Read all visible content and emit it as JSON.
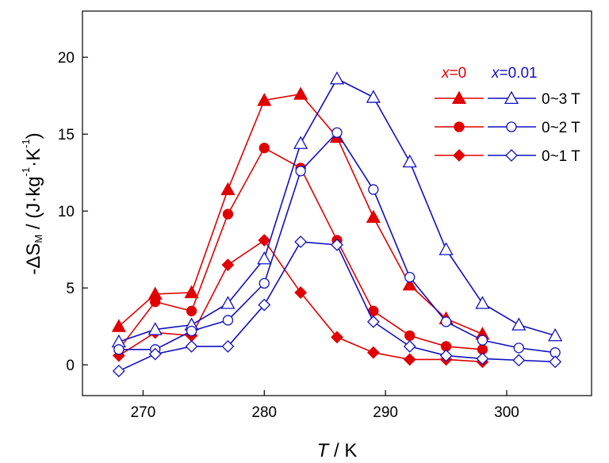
{
  "chart_data": {
    "type": "line",
    "xlabel": {
      "symbol": "T",
      "unit": " / K"
    },
    "ylabel": {
      "prefix": "-",
      "delta": "Δ",
      "symbol": "S",
      "subscript": "M",
      "unit": " / (J·kg",
      "exp1": "-1",
      "mid": "·K",
      "exp2": "-1",
      "close": ")"
    },
    "xlim": [
      265,
      307
    ],
    "ylim": [
      -2,
      23
    ],
    "xticks": [
      270,
      280,
      290,
      300
    ],
    "yticks": [
      0,
      5,
      10,
      15,
      20
    ],
    "legend": {
      "placement": "top-right",
      "group_labels": [
        {
          "var": "x",
          "eq": "=0",
          "color": "#e00000"
        },
        {
          "var": "x",
          "eq": "=0.01",
          "color": "#1010c0"
        }
      ],
      "entries": [
        "0~3 T",
        "0~2 T",
        "0~1 T"
      ]
    },
    "colors": {
      "x0": "#e00000",
      "x001": "#1010c0"
    },
    "series": [
      {
        "label": "0~3 T",
        "group": "x=0",
        "marker": "triangle",
        "filled": true,
        "x": [
          268,
          271,
          274,
          277,
          280,
          283,
          286,
          289,
          292,
          295,
          298
        ],
        "y": [
          2.5,
          4.6,
          4.7,
          11.4,
          17.2,
          17.6,
          14.8,
          9.6,
          5.2,
          3.0,
          2.0
        ]
      },
      {
        "label": "0~2 T",
        "group": "x=0",
        "marker": "circle",
        "filled": true,
        "x": [
          268,
          271,
          274,
          277,
          280,
          283,
          286,
          289,
          292,
          295,
          298
        ],
        "y": [
          1.0,
          4.1,
          3.5,
          9.8,
          14.1,
          12.8,
          8.1,
          3.5,
          1.9,
          1.2,
          1.0
        ]
      },
      {
        "label": "0~1 T",
        "group": "x=0",
        "marker": "diamond",
        "filled": true,
        "x": [
          268,
          271,
          274,
          277,
          280,
          283,
          286,
          289,
          292,
          295,
          298
        ],
        "y": [
          0.6,
          2.1,
          1.9,
          6.5,
          8.1,
          4.7,
          1.8,
          0.8,
          0.35,
          0.35,
          0.2
        ]
      },
      {
        "label": "0~3 T",
        "group": "x=0.01",
        "marker": "triangle",
        "filled": false,
        "x": [
          268,
          271,
          274,
          277,
          280,
          283,
          286,
          289,
          292,
          295,
          298,
          301,
          304
        ],
        "y": [
          1.5,
          2.3,
          2.6,
          4.0,
          6.9,
          14.4,
          18.6,
          17.4,
          13.2,
          7.5,
          4.0,
          2.6,
          1.9
        ]
      },
      {
        "label": "0~2 T",
        "group": "x=0.01",
        "marker": "circle",
        "filled": false,
        "x": [
          268,
          271,
          274,
          277,
          280,
          283,
          286,
          289,
          292,
          295,
          298,
          301,
          304
        ],
        "y": [
          1.0,
          1.0,
          2.2,
          2.9,
          5.3,
          12.6,
          15.1,
          11.4,
          5.7,
          2.8,
          1.6,
          1.1,
          0.8
        ]
      },
      {
        "label": "0~1 T",
        "group": "x=0.01",
        "marker": "diamond",
        "filled": false,
        "x": [
          268,
          271,
          274,
          277,
          280,
          283,
          286,
          289,
          292,
          295,
          298,
          301,
          304
        ],
        "y": [
          -0.4,
          0.7,
          1.2,
          1.2,
          3.9,
          8.0,
          7.8,
          2.8,
          1.2,
          0.6,
          0.4,
          0.3,
          0.2
        ]
      }
    ]
  }
}
